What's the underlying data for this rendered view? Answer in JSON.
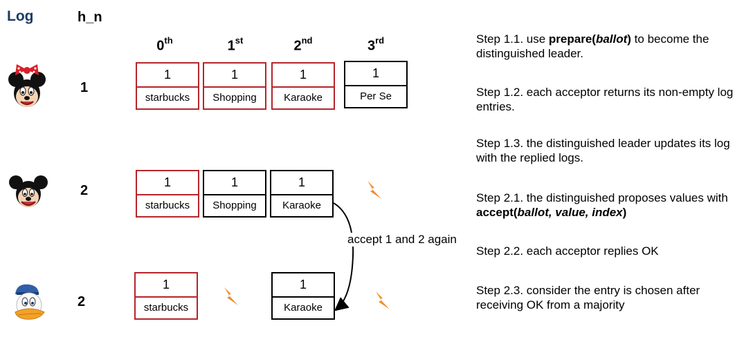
{
  "header": {
    "log": "Log",
    "hn": "h_n"
  },
  "columns": [
    {
      "base": "0",
      "sup": "th"
    },
    {
      "base": "1",
      "sup": "st"
    },
    {
      "base": "2",
      "sup": "nd"
    },
    {
      "base": "3",
      "sup": "rd"
    }
  ],
  "rows": [
    {
      "avatar": "minnie-mouse-icon",
      "hn": "1",
      "cells": [
        {
          "num": "1",
          "value": "starbucks",
          "border": "red"
        },
        {
          "num": "1",
          "value": "Shopping",
          "border": "red"
        },
        {
          "num": "1",
          "value": "Karaoke",
          "border": "red"
        },
        {
          "num": "1",
          "value": "Per Se",
          "border": "black"
        }
      ]
    },
    {
      "avatar": "mickey-mouse-icon",
      "hn": "2",
      "cells": [
        {
          "num": "1",
          "value": "starbucks",
          "border": "red"
        },
        {
          "num": "1",
          "value": "Shopping",
          "border": "black"
        },
        {
          "num": "1",
          "value": "Karaoke",
          "border": "black"
        }
      ]
    },
    {
      "avatar": "donald-duck-icon",
      "hn": "2",
      "cells": [
        {
          "num": "1",
          "value": "starbucks",
          "border": "red"
        },
        {
          "num": "1",
          "value": "Karaoke",
          "border": "black"
        }
      ]
    }
  ],
  "accept_label": "accept 1 and 2 again",
  "steps": [
    {
      "id": "1.1",
      "parts": [
        {
          "t": "Step 1.1. use ",
          "s": "n"
        },
        {
          "t": "prepare(",
          "s": "b"
        },
        {
          "t": "ballot",
          "s": "bi"
        },
        {
          "t": ")",
          "s": "b"
        },
        {
          "t": " to become the distinguished leader.",
          "s": "n"
        }
      ]
    },
    {
      "id": "1.2",
      "parts": [
        {
          "t": "Step 1.2. each acceptor returns its non-empty log entries.",
          "s": "n"
        }
      ]
    },
    {
      "id": "1.3",
      "parts": [
        {
          "t": "Step 1.3. the distinguished leader updates its log with the replied logs.",
          "s": "n"
        }
      ]
    },
    {
      "id": "2.1",
      "parts": [
        {
          "t": "Step 2.1. the distinguished proposes values with ",
          "s": "n"
        },
        {
          "t": "accept(",
          "s": "b"
        },
        {
          "t": "ballot, value, index",
          "s": "bi"
        },
        {
          "t": ")",
          "s": "b"
        }
      ]
    },
    {
      "id": "2.2",
      "parts": [
        {
          "t": "Step 2.2. each acceptor replies OK",
          "s": "n"
        }
      ]
    },
    {
      "id": "2.3",
      "parts": [
        {
          "t": "Step 2.3. consider the entry is chosen after receiving OK from a majority",
          "s": "n"
        }
      ]
    }
  ],
  "colors": {
    "red_border": "#b5252b",
    "log_title": "#1f3b63",
    "lightning": "#f08a2a"
  },
  "icons": [
    "minnie-mouse-icon",
    "mickey-mouse-icon",
    "donald-duck-icon",
    "lightning-icon"
  ]
}
